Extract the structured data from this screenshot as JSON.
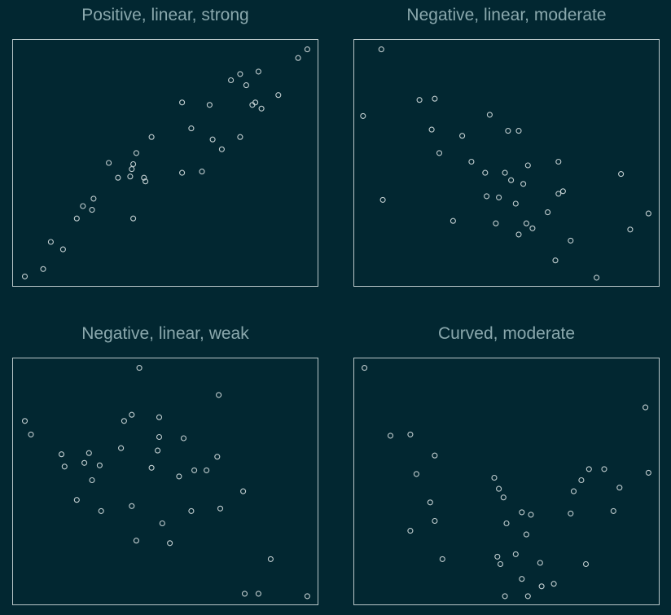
{
  "colors": {
    "background": "#022731",
    "frame": "#b8c6c8",
    "marker": "#c2ced0",
    "title": "#8aa8ad"
  },
  "chart_data": [
    {
      "type": "scatter",
      "title": "Positive, linear, strong",
      "xlabel": "",
      "ylabel": "",
      "grid": false,
      "xlim": [
        0,
        1
      ],
      "ylim": [
        0,
        1
      ],
      "points": [
        [
          0.04,
          0.04
        ],
        [
          0.1,
          0.07
        ],
        [
          0.125,
          0.18
        ],
        [
          0.165,
          0.15
        ],
        [
          0.21,
          0.275
        ],
        [
          0.23,
          0.325
        ],
        [
          0.26,
          0.31
        ],
        [
          0.265,
          0.355
        ],
        [
          0.315,
          0.5
        ],
        [
          0.345,
          0.44
        ],
        [
          0.385,
          0.445
        ],
        [
          0.39,
          0.475
        ],
        [
          0.395,
          0.275
        ],
        [
          0.395,
          0.495
        ],
        [
          0.405,
          0.54
        ],
        [
          0.43,
          0.44
        ],
        [
          0.435,
          0.425
        ],
        [
          0.455,
          0.605
        ],
        [
          0.555,
          0.46
        ],
        [
          0.555,
          0.745
        ],
        [
          0.585,
          0.64
        ],
        [
          0.62,
          0.465
        ],
        [
          0.645,
          0.735
        ],
        [
          0.655,
          0.595
        ],
        [
          0.685,
          0.555
        ],
        [
          0.745,
          0.605
        ],
        [
          0.715,
          0.835
        ],
        [
          0.745,
          0.86
        ],
        [
          0.765,
          0.815
        ],
        [
          0.785,
          0.735
        ],
        [
          0.795,
          0.745
        ],
        [
          0.805,
          0.87
        ],
        [
          0.815,
          0.72
        ],
        [
          0.87,
          0.775
        ],
        [
          0.935,
          0.925
        ],
        [
          0.965,
          0.96
        ]
      ]
    },
    {
      "type": "scatter",
      "title": "Negative, linear, moderate",
      "xlabel": "",
      "ylabel": "",
      "grid": false,
      "xlim": [
        0,
        1
      ],
      "ylim": [
        0,
        1
      ],
      "points": [
        [
          0.03,
          0.69
        ],
        [
          0.09,
          0.96
        ],
        [
          0.095,
          0.35
        ],
        [
          0.215,
          0.755
        ],
        [
          0.265,
          0.76
        ],
        [
          0.255,
          0.635
        ],
        [
          0.28,
          0.54
        ],
        [
          0.325,
          0.265
        ],
        [
          0.355,
          0.61
        ],
        [
          0.385,
          0.505
        ],
        [
          0.43,
          0.46
        ],
        [
          0.435,
          0.365
        ],
        [
          0.445,
          0.695
        ],
        [
          0.465,
          0.255
        ],
        [
          0.475,
          0.36
        ],
        [
          0.495,
          0.46
        ],
        [
          0.505,
          0.63
        ],
        [
          0.515,
          0.43
        ],
        [
          0.53,
          0.335
        ],
        [
          0.54,
          0.21
        ],
        [
          0.54,
          0.63
        ],
        [
          0.555,
          0.415
        ],
        [
          0.565,
          0.255
        ],
        [
          0.57,
          0.49
        ],
        [
          0.585,
          0.235
        ],
        [
          0.635,
          0.3
        ],
        [
          0.66,
          0.105
        ],
        [
          0.67,
          0.375
        ],
        [
          0.67,
          0.505
        ],
        [
          0.685,
          0.385
        ],
        [
          0.71,
          0.185
        ],
        [
          0.795,
          0.035
        ],
        [
          0.875,
          0.455
        ],
        [
          0.905,
          0.23
        ],
        [
          0.965,
          0.295
        ]
      ]
    },
    {
      "type": "scatter",
      "title": "Negative, linear, weak",
      "xlabel": "",
      "ylabel": "",
      "grid": false,
      "xlim": [
        0,
        1
      ],
      "ylim": [
        0,
        1
      ],
      "points": [
        [
          0.04,
          0.745
        ],
        [
          0.06,
          0.69
        ],
        [
          0.16,
          0.61
        ],
        [
          0.17,
          0.56
        ],
        [
          0.21,
          0.425
        ],
        [
          0.235,
          0.575
        ],
        [
          0.25,
          0.615
        ],
        [
          0.26,
          0.505
        ],
        [
          0.285,
          0.565
        ],
        [
          0.29,
          0.38
        ],
        [
          0.355,
          0.635
        ],
        [
          0.365,
          0.745
        ],
        [
          0.39,
          0.77
        ],
        [
          0.39,
          0.4
        ],
        [
          0.405,
          0.26
        ],
        [
          0.415,
          0.96
        ],
        [
          0.455,
          0.555
        ],
        [
          0.475,
          0.625
        ],
        [
          0.48,
          0.76
        ],
        [
          0.48,
          0.68
        ],
        [
          0.49,
          0.33
        ],
        [
          0.515,
          0.25
        ],
        [
          0.545,
          0.52
        ],
        [
          0.56,
          0.675
        ],
        [
          0.585,
          0.38
        ],
        [
          0.595,
          0.545
        ],
        [
          0.635,
          0.545
        ],
        [
          0.67,
          0.6
        ],
        [
          0.675,
          0.85
        ],
        [
          0.68,
          0.39
        ],
        [
          0.755,
          0.46
        ],
        [
          0.845,
          0.185
        ],
        [
          0.805,
          0.045
        ],
        [
          0.76,
          0.045
        ],
        [
          0.965,
          0.035
        ]
      ]
    },
    {
      "type": "scatter",
      "title": "Curved, moderate",
      "xlabel": "",
      "ylabel": "",
      "grid": false,
      "xlim": [
        0,
        1
      ],
      "ylim": [
        0,
        1
      ],
      "points": [
        [
          0.035,
          0.96
        ],
        [
          0.12,
          0.685
        ],
        [
          0.185,
          0.69
        ],
        [
          0.185,
          0.3
        ],
        [
          0.205,
          0.53
        ],
        [
          0.25,
          0.415
        ],
        [
          0.265,
          0.34
        ],
        [
          0.29,
          0.185
        ],
        [
          0.265,
          0.605
        ],
        [
          0.46,
          0.515
        ],
        [
          0.47,
          0.195
        ],
        [
          0.475,
          0.47
        ],
        [
          0.48,
          0.165
        ],
        [
          0.49,
          0.435
        ],
        [
          0.495,
          0.035
        ],
        [
          0.5,
          0.33
        ],
        [
          0.53,
          0.205
        ],
        [
          0.55,
          0.375
        ],
        [
          0.55,
          0.105
        ],
        [
          0.565,
          0.285
        ],
        [
          0.57,
          0.035
        ],
        [
          0.58,
          0.365
        ],
        [
          0.61,
          0.17
        ],
        [
          0.615,
          0.075
        ],
        [
          0.655,
          0.085
        ],
        [
          0.71,
          0.37
        ],
        [
          0.72,
          0.46
        ],
        [
          0.745,
          0.505
        ],
        [
          0.76,
          0.165
        ],
        [
          0.77,
          0.55
        ],
        [
          0.82,
          0.55
        ],
        [
          0.85,
          0.38
        ],
        [
          0.87,
          0.475
        ],
        [
          0.955,
          0.8
        ],
        [
          0.965,
          0.535
        ]
      ]
    }
  ]
}
